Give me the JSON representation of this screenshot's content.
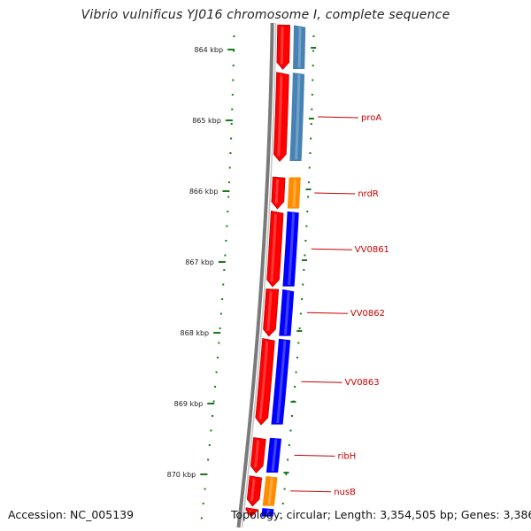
{
  "title": "Vibrio vulnificus YJ016 chromosome I, complete sequence",
  "footer": {
    "accession_text": "Accession: NC_005139",
    "summary_text": "Topology: circular; Length: 3,354,505 bp; Genes: 3,386"
  },
  "colors": {
    "backbone": "#7a7a7a",
    "tick": "#1a7a1a",
    "forward_cds": "#ff0000",
    "gene_label": "#cc0000",
    "cog_lightblue": "#4682b4",
    "cog_orange": "#ff8c00",
    "cog_blue": "#0000ff"
  },
  "ruler": {
    "unit": "kbp",
    "ticks": [
      {
        "kbp": 864,
        "label": "864 kbp"
      },
      {
        "kbp": 865,
        "label": "865 kbp"
      },
      {
        "kbp": 866,
        "label": "866 kbp"
      },
      {
        "kbp": 867,
        "label": "867 kbp"
      },
      {
        "kbp": 868,
        "label": "868 kbp"
      },
      {
        "kbp": 869,
        "label": "869 kbp"
      },
      {
        "kbp": 870,
        "label": "870 kbp"
      }
    ]
  },
  "genes": [
    {
      "name": "",
      "start_kbp": 863.6,
      "end_kbp": 864.28,
      "cog_color": "#4682b4"
    },
    {
      "name": "proA",
      "start_kbp": 864.32,
      "end_kbp": 865.58,
      "cog_color": "#4682b4"
    },
    {
      "name": "nrdR",
      "start_kbp": 865.8,
      "end_kbp": 866.25,
      "cog_color": "#ff8c00"
    },
    {
      "name": "VV0861",
      "start_kbp": 866.28,
      "end_kbp": 867.35,
      "cog_color": "#0000ff"
    },
    {
      "name": "VV0862",
      "start_kbp": 867.38,
      "end_kbp": 868.05,
      "cog_color": "#0000ff"
    },
    {
      "name": "VV0863",
      "start_kbp": 868.08,
      "end_kbp": 869.3,
      "cog_color": "#0000ff"
    },
    {
      "name": "ribH",
      "start_kbp": 869.48,
      "end_kbp": 869.98,
      "cog_color": "#0000ff"
    },
    {
      "name": "nusB",
      "start_kbp": 870.02,
      "end_kbp": 870.45,
      "cog_color": "#ff8c00"
    },
    {
      "name": "",
      "start_kbp": 870.47,
      "end_kbp": 870.6,
      "cog_color": "#0000ff"
    }
  ]
}
